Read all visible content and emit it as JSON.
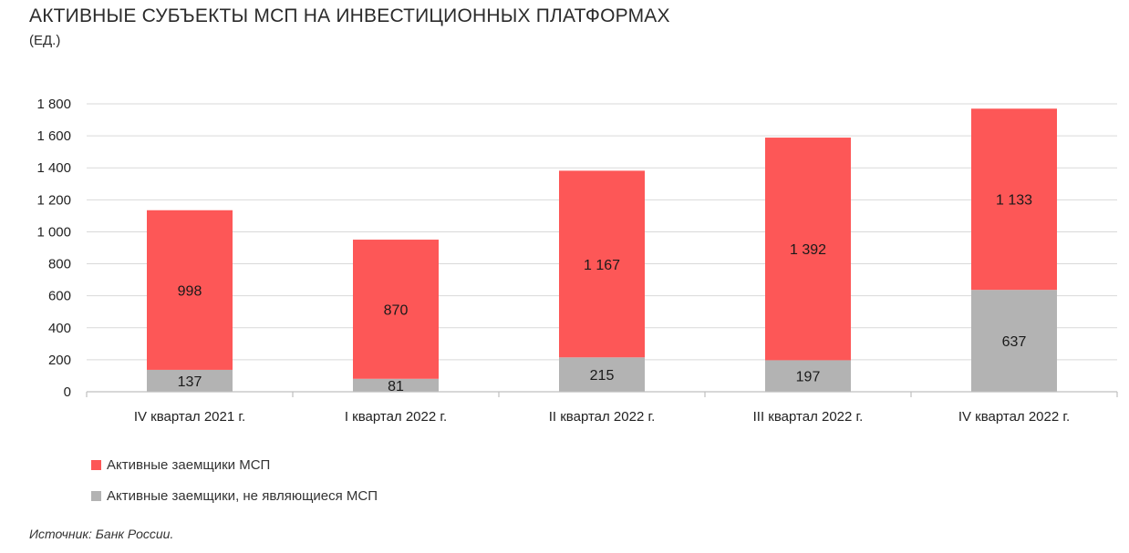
{
  "title": "АКТИВНЫЕ СУБЪЕКТЫ МСП НА ИНВЕСТИЦИОННЫХ ПЛАТФОРМАХ",
  "subtitle": "(ЕД.)",
  "source": "Источник: Банк России.",
  "colors": {
    "msp": "#fd5757",
    "non_msp": "#b3b3b3",
    "grid": "#d9d9d9",
    "axis": "#bfbfbf"
  },
  "chart_data": {
    "type": "bar",
    "stacked": true,
    "categories": [
      "IV квартал 2021 г.",
      "I квартал 2022 г.",
      "II квартал 2022 г.",
      "III квартал 2022 г.",
      "IV квартал 2022 г."
    ],
    "series": [
      {
        "name": "Активные заемщики, не являющиеся МСП",
        "values": [
          137,
          81,
          215,
          197,
          637
        ],
        "labels": [
          "137",
          "81",
          "215",
          "197",
          "637"
        ],
        "color": "#b3b3b3"
      },
      {
        "name": "Активные заемщики МСП",
        "values": [
          998,
          870,
          1167,
          1392,
          1133
        ],
        "labels": [
          "998",
          "870",
          "1 167",
          "1 392",
          "1 133"
        ],
        "color": "#fd5757"
      }
    ],
    "ylim": [
      0,
      1800
    ],
    "yticks": [
      0,
      200,
      400,
      600,
      800,
      1000,
      1200,
      1400,
      1600,
      1800
    ],
    "ytick_labels": [
      "0",
      "200",
      "400",
      "600",
      "800",
      "1 000",
      "1 200",
      "1 400",
      "1 600",
      "1 800"
    ],
    "grid": true,
    "legend_position": "bottom-left"
  },
  "legend": [
    {
      "label": "Активные заемщики МСП",
      "color": "#fd5757"
    },
    {
      "label": "Активные заемщики, не являющиеся МСП",
      "color": "#b3b3b3"
    }
  ]
}
